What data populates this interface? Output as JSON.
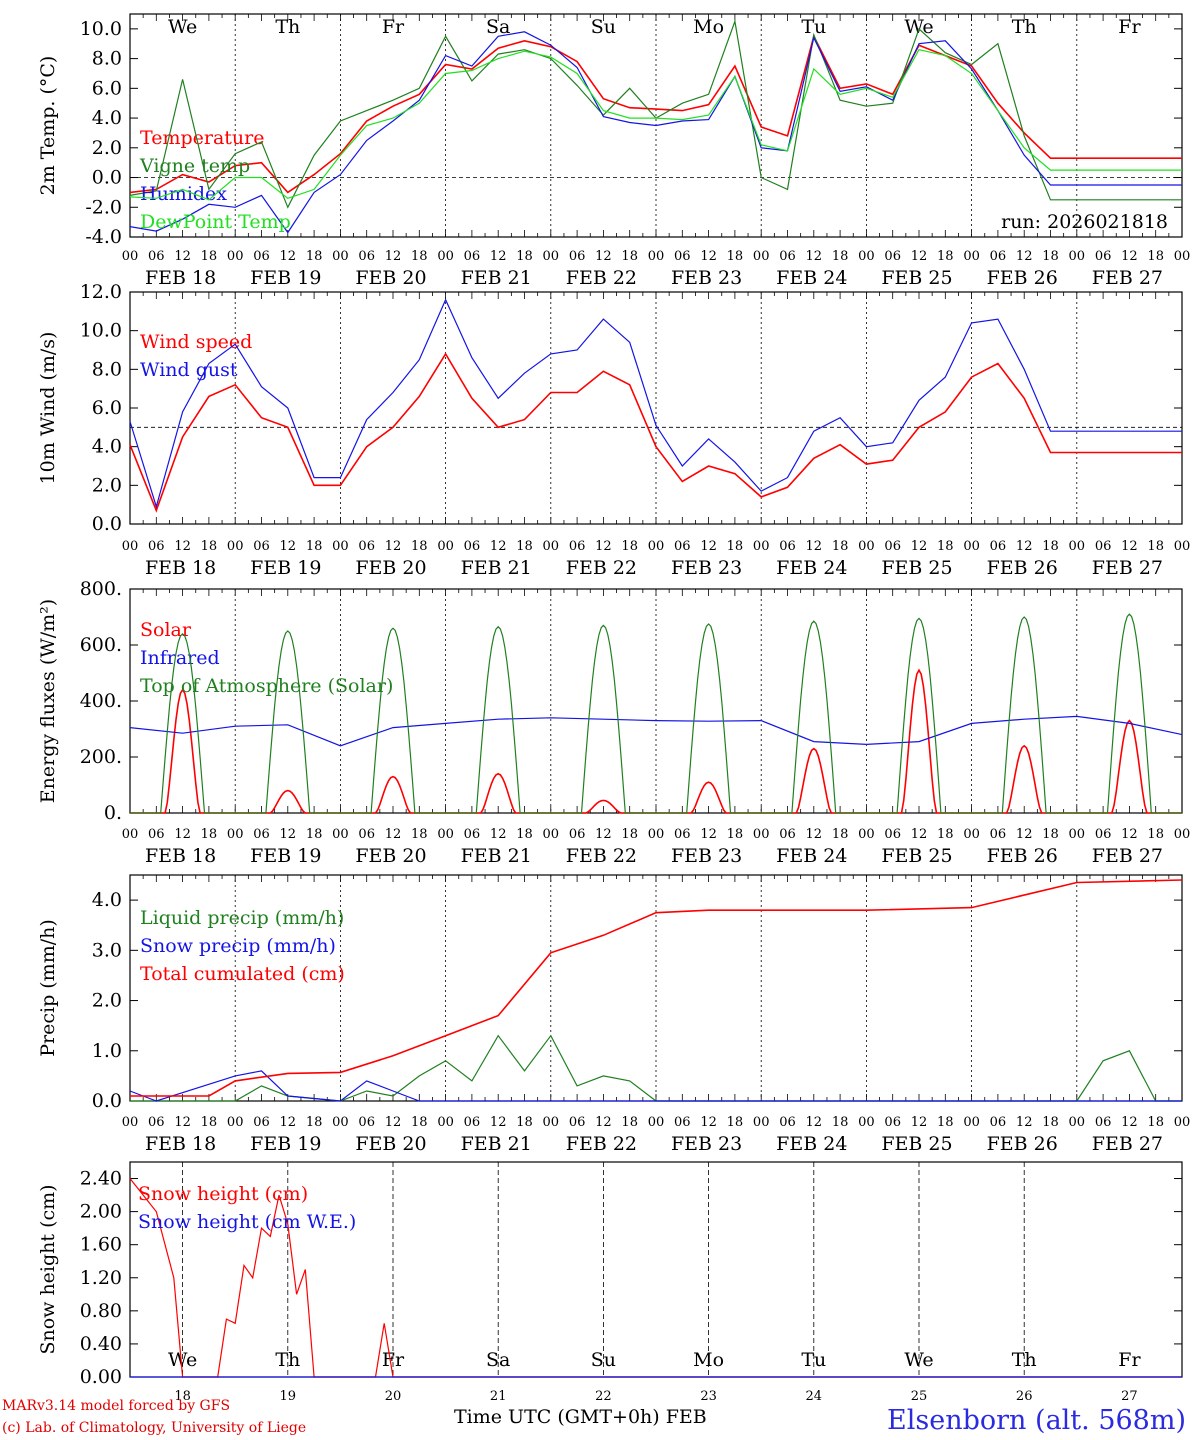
{
  "footer": {
    "model_line": "MARv3.14 model forced by GFS",
    "credit_line": "(c) Lab. of Climatology, University of Liege",
    "x_title": "Time UTC (GMT+0h)",
    "month": "FEB",
    "station": "Elsenborn (alt. 568m)"
  },
  "colors": {
    "red": "#ff0000",
    "green": "#208020",
    "blue": "#1414e6",
    "light_green": "#20e020",
    "black": "#000000"
  },
  "days": [
    {
      "short": "We",
      "date": "FEB 18",
      "num": "18",
      "weekend": false
    },
    {
      "short": "Th",
      "date": "FEB 19",
      "num": "19",
      "weekend": false
    },
    {
      "short": "Fr",
      "date": "FEB 20",
      "num": "20",
      "weekend": false
    },
    {
      "short": "Sa",
      "date": "FEB 21",
      "num": "21",
      "weekend": true
    },
    {
      "short": "Su",
      "date": "FEB 22",
      "num": "22",
      "weekend": true
    },
    {
      "short": "Mo",
      "date": "FEB 23",
      "num": "23",
      "weekend": false
    },
    {
      "short": "Tu",
      "date": "FEB 24",
      "num": "24",
      "weekend": false
    },
    {
      "short": "We",
      "date": "FEB 25",
      "num": "25",
      "weekend": false
    },
    {
      "short": "Th",
      "date": "FEB 26",
      "num": "26",
      "weekend": false
    },
    {
      "short": "Fr",
      "date": "FEB 27",
      "num": "27",
      "weekend": false
    }
  ],
  "hour_ticks": [
    "00",
    "06",
    "12",
    "18"
  ],
  "chart_data": [
    {
      "id": "temp",
      "type": "line",
      "ylabel": "2m Temp. (°C)",
      "ylim": [
        -4,
        11
      ],
      "yticks": [
        "-4.0",
        "-2.0",
        "0.0",
        "2.0",
        "4.0",
        "6.0",
        "8.0",
        "10.0"
      ],
      "ytick_values": [
        -4,
        -2,
        0,
        2,
        4,
        6,
        8,
        10
      ],
      "ref_line": 0,
      "annotation": "run: 2026021818",
      "x_hours": [
        0,
        6,
        12,
        18,
        24,
        30,
        36,
        42,
        48,
        54,
        60,
        66,
        72,
        78,
        84,
        90,
        96,
        102,
        108,
        114,
        120,
        126,
        132,
        138,
        144,
        150,
        156,
        162,
        168,
        174,
        180,
        186,
        192,
        198,
        204,
        210,
        216,
        222,
        228,
        234,
        240
      ],
      "series": [
        {
          "name": "Temperature",
          "color": "red",
          "values": [
            -1.0,
            -0.8,
            0.2,
            -0.3,
            0.8,
            1.0,
            -1.0,
            0.2,
            1.6,
            3.8,
            4.8,
            5.6,
            7.6,
            7.3,
            8.7,
            9.2,
            8.8,
            7.8,
            5.3,
            4.7,
            4.6,
            4.5,
            4.9,
            7.5,
            3.4,
            2.8,
            9.5,
            6.0,
            6.3,
            5.6,
            8.9,
            8.2,
            7.5,
            5.0,
            3.0,
            1.3,
            1.3,
            1.3,
            1.3,
            1.3,
            1.3
          ]
        },
        {
          "name": "Vigne temp",
          "color": "green",
          "values": [
            -1.2,
            -0.9,
            6.6,
            -0.8,
            1.6,
            2.4,
            -2.0,
            1.5,
            3.8,
            4.5,
            5.2,
            6.0,
            9.5,
            6.5,
            8.3,
            8.6,
            8.0,
            6.2,
            4.2,
            6.0,
            4.0,
            5.0,
            5.6,
            10.5,
            0.0,
            -0.8,
            9.6,
            5.2,
            4.8,
            5.0,
            10.0,
            8.4,
            7.6,
            9.0,
            2.8,
            -1.5,
            -1.5,
            -1.5,
            -1.5,
            -1.5,
            -1.5
          ]
        },
        {
          "name": "Humidex",
          "color": "blue",
          "values": [
            -3.3,
            -3.6,
            -2.8,
            -1.8,
            -2.0,
            -1.2,
            -3.7,
            -1.0,
            0.2,
            2.5,
            3.8,
            5.2,
            8.2,
            7.5,
            9.5,
            9.8,
            8.9,
            7.4,
            4.1,
            3.7,
            3.5,
            3.8,
            3.9,
            6.8,
            2.0,
            1.8,
            9.4,
            5.8,
            6.1,
            5.2,
            9.0,
            9.2,
            7.3,
            4.5,
            1.5,
            -0.5,
            -0.5,
            -0.5,
            -0.5,
            -0.5,
            -0.5
          ]
        },
        {
          "name": "DewPoint Temp",
          "color": "light_green",
          "values": [
            -1.3,
            -1.4,
            -0.8,
            -1.5,
            0.0,
            0.0,
            -1.4,
            -0.8,
            1.5,
            3.5,
            4.0,
            5.0,
            7.0,
            7.2,
            8.0,
            8.5,
            8.1,
            7.0,
            4.5,
            4.0,
            4.0,
            3.9,
            4.2,
            6.8,
            2.2,
            1.8,
            7.3,
            5.6,
            6.0,
            5.4,
            8.6,
            8.2,
            7.0,
            4.5,
            2.0,
            0.5,
            0.5,
            0.5,
            0.5,
            0.5,
            0.5
          ]
        }
      ]
    },
    {
      "id": "wind",
      "type": "line",
      "ylabel": "10m Wind (m/s)",
      "ylim": [
        0,
        12
      ],
      "yticks": [
        "0.0",
        "2.0",
        "4.0",
        "6.0",
        "8.0",
        "10.0",
        "12.0"
      ],
      "ytick_values": [
        0,
        2,
        4,
        6,
        8,
        10,
        12
      ],
      "ref_line": 5,
      "x_hours": [
        0,
        6,
        12,
        18,
        24,
        30,
        36,
        42,
        48,
        54,
        60,
        66,
        72,
        78,
        84,
        90,
        96,
        102,
        108,
        114,
        120,
        126,
        132,
        138,
        144,
        150,
        156,
        162,
        168,
        174,
        180,
        186,
        192,
        198,
        204,
        210,
        216,
        222,
        228,
        234,
        240
      ],
      "series": [
        {
          "name": "Wind speed",
          "color": "red",
          "values": [
            4.1,
            0.7,
            4.5,
            6.6,
            7.2,
            5.5,
            5.0,
            2.0,
            2.0,
            4.0,
            5.0,
            6.6,
            8.8,
            6.5,
            5.0,
            5.4,
            6.8,
            6.8,
            7.9,
            7.2,
            4.0,
            2.2,
            3.0,
            2.6,
            1.4,
            1.9,
            3.4,
            4.1,
            3.1,
            3.3,
            5.0,
            5.8,
            7.6,
            8.3,
            6.5,
            3.7,
            3.7,
            3.7,
            3.7,
            3.7,
            3.7
          ]
        },
        {
          "name": "Wind gust",
          "color": "blue",
          "values": [
            5.3,
            0.9,
            5.8,
            8.3,
            9.3,
            7.1,
            6.0,
            2.4,
            2.4,
            5.4,
            6.8,
            8.5,
            11.6,
            8.6,
            6.5,
            7.8,
            8.8,
            9.0,
            10.6,
            9.4,
            5.1,
            3.0,
            4.4,
            3.2,
            1.7,
            2.4,
            4.8,
            5.5,
            4.0,
            4.2,
            6.4,
            7.6,
            10.4,
            10.6,
            8.0,
            4.8,
            4.8,
            4.8,
            4.8,
            4.8,
            4.8
          ]
        }
      ]
    },
    {
      "id": "energy",
      "type": "line",
      "ylabel": "Energy fluxes (W/m²)",
      "ylim": [
        0,
        800
      ],
      "yticks": [
        "0.",
        "200.",
        "400.",
        "600.",
        "800."
      ],
      "ytick_values": [
        0,
        200,
        400,
        600,
        800
      ],
      "series": [
        {
          "name": "Solar",
          "color": "red",
          "daily_peaks": [
            440,
            80,
            130,
            140,
            45,
            110,
            230,
            510,
            240,
            330
          ]
        },
        {
          "name": "Infrared",
          "color": "blue",
          "x_hours": [
            0,
            12,
            24,
            36,
            48,
            60,
            72,
            84,
            96,
            108,
            120,
            132,
            144,
            156,
            168,
            180,
            192,
            204,
            216,
            228,
            240
          ],
          "values": [
            305,
            285,
            310,
            315,
            240,
            305,
            320,
            335,
            340,
            335,
            330,
            328,
            330,
            255,
            245,
            255,
            320,
            335,
            345,
            320,
            280
          ]
        },
        {
          "name": "Top of Atmosphere (Solar)",
          "color": "green",
          "daily_peaks": [
            640,
            650,
            660,
            665,
            670,
            675,
            685,
            695,
            700,
            710
          ]
        }
      ]
    },
    {
      "id": "precip",
      "type": "line",
      "ylabel": "Precip (mm/h)",
      "ylim": [
        0,
        4.5
      ],
      "yticks": [
        "0.0",
        "1.0",
        "2.0",
        "3.0",
        "4.0"
      ],
      "ytick_values": [
        0,
        1,
        2,
        3,
        4
      ],
      "series": [
        {
          "name": "Liquid precip (mm/h)",
          "color": "green",
          "x_hours": [
            0,
            24,
            30,
            36,
            48,
            54,
            60,
            66,
            72,
            78,
            84,
            90,
            96,
            102,
            108,
            114,
            120,
            126,
            132,
            216,
            222,
            228,
            234,
            240
          ],
          "values": [
            0.0,
            0.0,
            0.3,
            0.1,
            0.0,
            0.2,
            0.1,
            0.5,
            0.8,
            0.4,
            1.3,
            0.6,
            1.3,
            0.3,
            0.5,
            0.4,
            0.0,
            0.0,
            0.0,
            0.0,
            0.8,
            1.0,
            0.0,
            0.0
          ]
        },
        {
          "name": "Snow precip (mm/h)",
          "color": "blue",
          "x_hours": [
            0,
            6,
            24,
            30,
            36,
            48,
            54,
            60,
            66,
            72,
            240
          ],
          "values": [
            0.2,
            0.0,
            0.5,
            0.6,
            0.1,
            0.0,
            0.4,
            0.2,
            0.0,
            0.0,
            0.0
          ]
        },
        {
          "name": "Total cumulated (cm)",
          "color": "red",
          "x_hours": [
            0,
            18,
            24,
            36,
            48,
            60,
            72,
            84,
            96,
            108,
            120,
            132,
            144,
            168,
            192,
            216,
            240
          ],
          "values": [
            0.1,
            0.1,
            0.4,
            0.55,
            0.57,
            0.9,
            1.3,
            1.7,
            2.95,
            3.3,
            3.75,
            3.8,
            3.8,
            3.8,
            3.85,
            4.35,
            4.4
          ]
        }
      ]
    },
    {
      "id": "snow",
      "type": "line",
      "ylabel": "Snow height (cm)",
      "ylim": [
        0,
        2.6
      ],
      "yticks": [
        "0.00",
        "0.40",
        "0.80",
        "1.20",
        "1.60",
        "2.00",
        "2.40"
      ],
      "ytick_values": [
        0,
        0.4,
        0.8,
        1.2,
        1.6,
        2.0,
        2.4
      ],
      "series": [
        {
          "name": "Snow height (cm)",
          "color": "red",
          "x_hours": [
            0,
            6,
            10,
            12,
            14,
            20,
            22,
            24,
            26,
            28,
            30,
            32,
            34,
            36,
            38,
            40,
            42,
            56,
            58,
            60,
            240
          ],
          "values": [
            2.4,
            2.0,
            1.2,
            0.0,
            0.0,
            0.0,
            0.7,
            0.65,
            1.35,
            1.2,
            1.8,
            1.7,
            2.2,
            1.85,
            1.0,
            1.3,
            0.0,
            0.0,
            0.65,
            0.0,
            0.0
          ]
        },
        {
          "name": "Snow height (cm W.E.)",
          "color": "blue",
          "x_hours": [
            0,
            240
          ],
          "values": [
            0.0,
            0.0
          ]
        }
      ]
    }
  ]
}
